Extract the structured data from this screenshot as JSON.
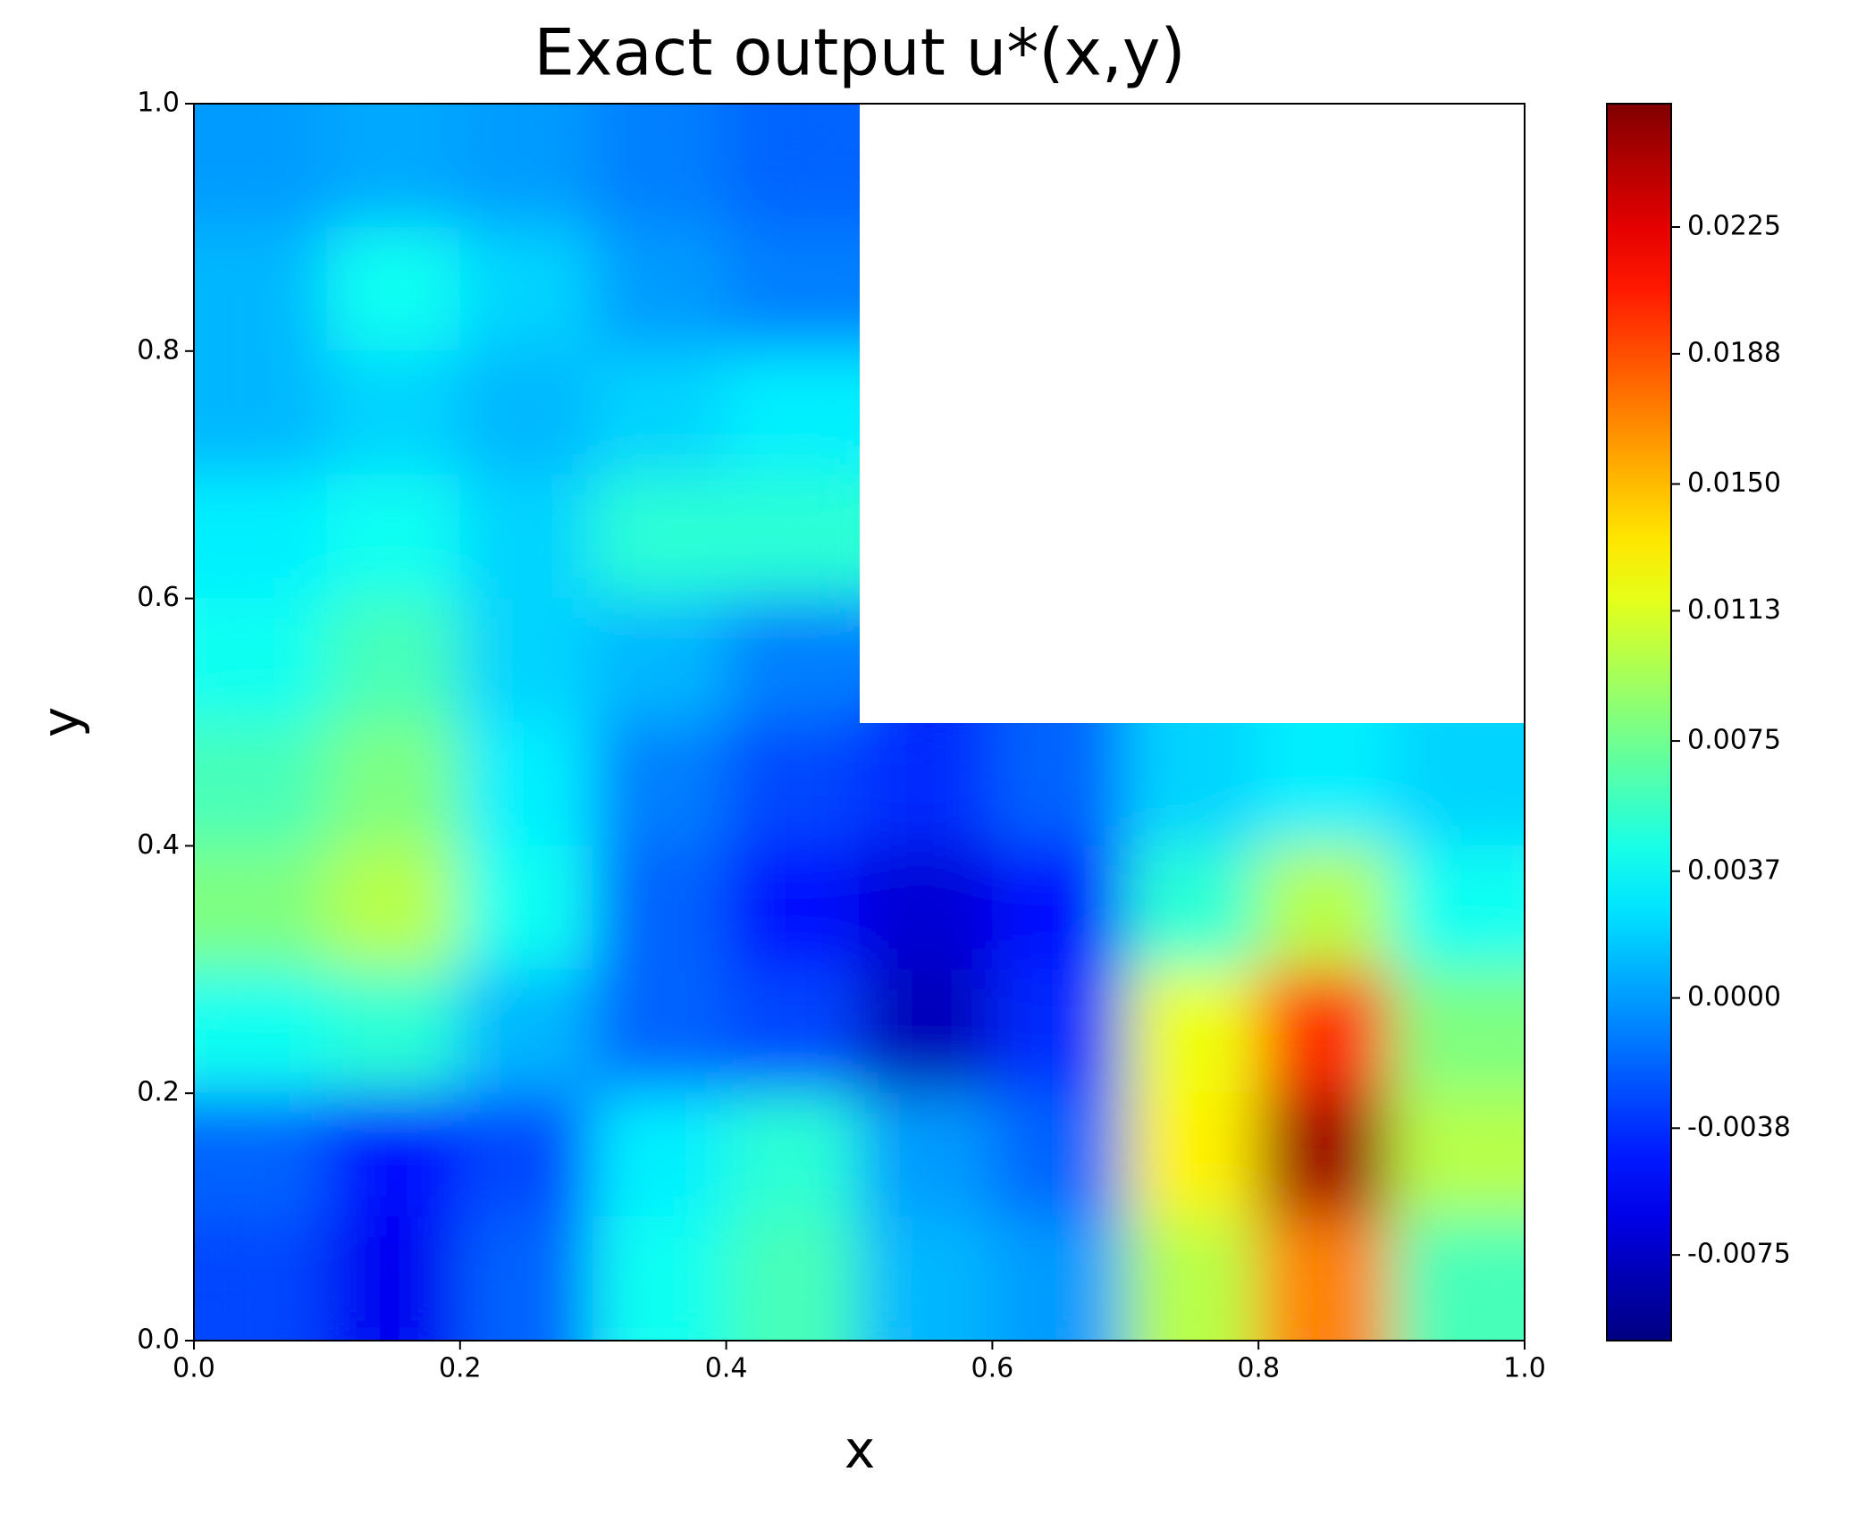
{
  "chart_data": {
    "type": "heatmap",
    "title": "Exact output u*(x,y)",
    "x_label": "x",
    "y_label": "y",
    "x": [
      0.05,
      0.15,
      0.25,
      0.35,
      0.45,
      0.55,
      0.65,
      0.75,
      0.85,
      0.95
    ],
    "y": [
      0.95,
      0.85,
      0.75,
      0.65,
      0.55,
      0.45,
      0.35,
      0.25,
      0.15,
      0.05
    ],
    "z": [
      [
        0.0,
        0.0005,
        0.0,
        -0.001,
        -0.002,
        null,
        null,
        null,
        null,
        null
      ],
      [
        0.001,
        0.004,
        0.002,
        0.0,
        -0.001,
        null,
        null,
        null,
        null,
        null
      ],
      [
        0.001,
        0.002,
        0.001,
        0.002,
        0.003,
        null,
        null,
        null,
        null,
        null
      ],
      [
        0.003,
        0.004,
        0.002,
        0.005,
        0.005,
        null,
        null,
        null,
        null,
        null
      ],
      [
        0.004,
        0.006,
        0.002,
        0.001,
        -0.001,
        null,
        null,
        null,
        null,
        null
      ],
      [
        0.006,
        0.008,
        0.003,
        -0.001,
        -0.003,
        -0.004,
        -0.002,
        0.002,
        0.003,
        0.002
      ],
      [
        0.008,
        0.01,
        0.004,
        -0.002,
        -0.005,
        -0.007,
        -0.005,
        0.005,
        0.01,
        0.004
      ],
      [
        0.004,
        0.005,
        0.001,
        -0.002,
        -0.003,
        -0.008,
        -0.004,
        0.012,
        0.02,
        0.008
      ],
      [
        -0.002,
        -0.005,
        -0.003,
        0.003,
        0.005,
        0.0,
        -0.002,
        0.013,
        0.025,
        0.01
      ],
      [
        -0.003,
        -0.006,
        -0.002,
        0.004,
        0.006,
        0.001,
        0.0,
        0.01,
        0.017,
        0.006
      ]
    ],
    "xlim": [
      0,
      1
    ],
    "ylim": [
      0,
      1
    ],
    "xticks": [
      {
        "value": 0,
        "label": "0.0"
      },
      0.2,
      0.4,
      0.6,
      0.8,
      {
        "value": 1,
        "label": "1.0"
      }
    ],
    "yticks": [
      {
        "value": 0,
        "label": "0.0"
      },
      0.2,
      0.4,
      0.6,
      0.8,
      {
        "value": 1,
        "label": "1.0"
      }
    ],
    "colormap": "jet",
    "zlim": [
      -0.01,
      0.0261
    ],
    "colorbar_ticks": [
      -0.0075,
      -0.0038,
      {
        "value": 0,
        "label": "0.0000"
      },
      0.0037,
      0.0075,
      0.0113,
      {
        "value": 0.015,
        "label": "0.0150"
      },
      0.0188,
      0.0225
    ]
  }
}
